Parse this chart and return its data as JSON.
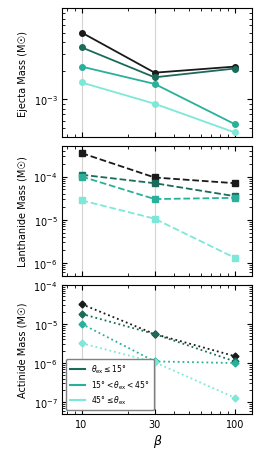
{
  "beta": [
    10,
    30,
    100
  ],
  "ejecta": {
    "black": [
      0.005,
      0.0019,
      0.0022
    ],
    "dark_teal": [
      0.0035,
      0.0017,
      0.0021
    ],
    "mid_teal": [
      0.0022,
      0.00145,
      0.00055
    ],
    "light_teal": [
      0.0015,
      0.0009,
      0.00045
    ]
  },
  "lanthanide": {
    "black": [
      0.00035,
      9.5e-05,
      7e-05
    ],
    "dark_teal": [
      0.00011,
      7e-05,
      3.5e-05
    ],
    "mid_teal": [
      0.0001,
      3e-05,
      3.2e-05
    ],
    "light_teal": [
      2.8e-05,
      1.05e-05,
      1.3e-06
    ]
  },
  "actinide": {
    "black": [
      3.2e-05,
      5.5e-06,
      1.5e-06
    ],
    "dark_teal": [
      1.8e-05,
      5.5e-06,
      1.1e-06
    ],
    "mid_teal": [
      1e-05,
      1.1e-06,
      1e-06
    ],
    "light_teal": [
      3.2e-06,
      1.05e-06,
      1.3e-07
    ]
  },
  "colors": {
    "black": "#1a1a1a",
    "dark_teal": "#1a6b5a",
    "mid_teal": "#2ab09a",
    "light_teal": "#7de8d8"
  },
  "vline_x": [
    10,
    30
  ],
  "xlabel": "β",
  "ylabels": [
    "Ejecta Mass (M☉)",
    "Lanthanide Mass (M☉)",
    "Actinide Mass (M☉)"
  ],
  "ejecta_ylim": [
    0.0004,
    0.009
  ],
  "lanthanide_ylim": [
    5e-07,
    0.0005
  ],
  "actinide_ylim": [
    5e-08,
    0.0001
  ],
  "legend_labels": [
    "θ_ex ≤ 15°",
    "15° < θ_ex < 45°",
    "45° ≤ θ_ex"
  ]
}
